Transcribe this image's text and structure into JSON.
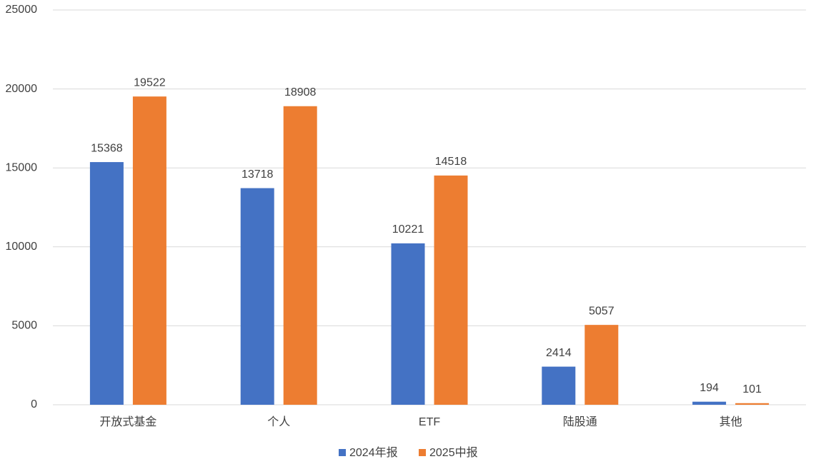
{
  "chart_data": {
    "type": "bar",
    "categories": [
      "开放式基金",
      "个人",
      "ETF",
      "陆股通",
      "其他"
    ],
    "series": [
      {
        "name": "2024年报",
        "color": "#4472c4",
        "values": [
          15368,
          13718,
          10221,
          2414,
          194
        ]
      },
      {
        "name": "2025中报",
        "color": "#ed7d31",
        "values": [
          19522,
          18908,
          14518,
          5057,
          101
        ]
      }
    ],
    "ylim": [
      0,
      25000
    ],
    "yticks": [
      0,
      5000,
      10000,
      15000,
      20000,
      25000
    ],
    "grid": true,
    "legend": "bottom"
  }
}
